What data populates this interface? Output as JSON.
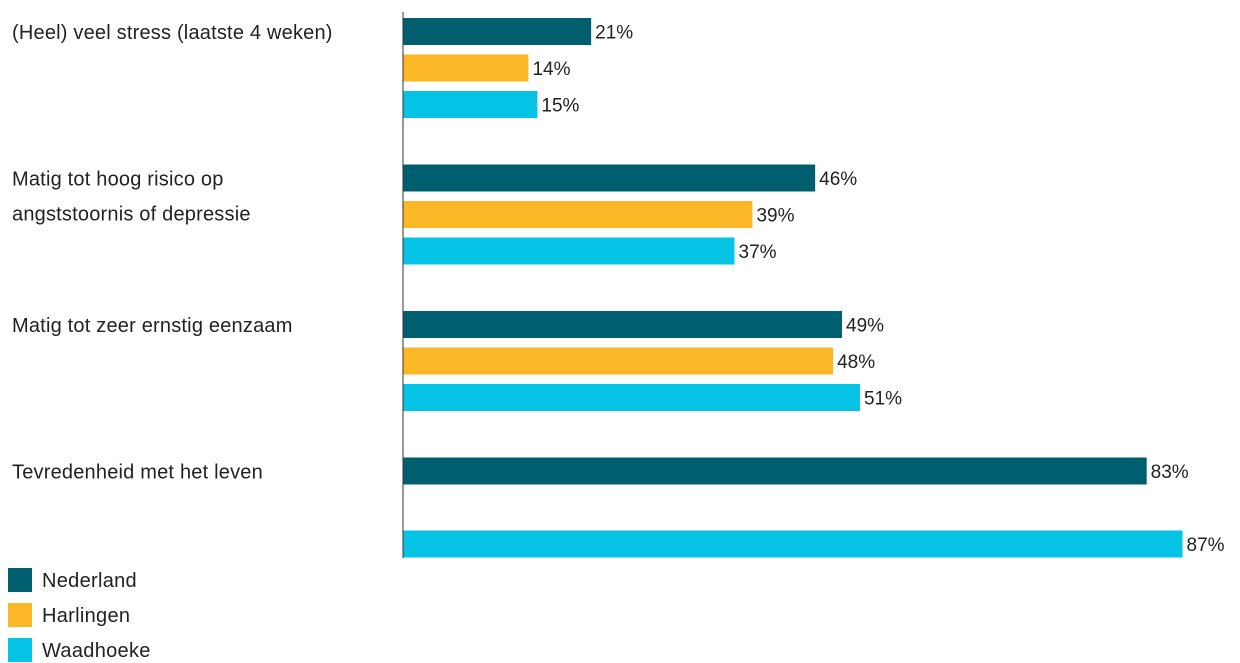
{
  "chart_data": {
    "type": "bar",
    "orientation": "horizontal",
    "categories": [
      [
        "(Heel) veel stress (laatste 4 weken)"
      ],
      [
        "Matig tot hoog risico op",
        "angststoornis of depressie"
      ],
      [
        "Matig tot zeer ernstig eenzaam"
      ],
      [
        "Tevredenheid met het leven"
      ]
    ],
    "series": [
      {
        "name": "Nederland",
        "color": "#005f6e",
        "values": [
          21,
          46,
          49,
          83
        ],
        "labels": [
          "21%",
          "46%",
          "49%",
          "83%"
        ]
      },
      {
        "name": "Harlingen",
        "color": "#fbb726",
        "values": [
          14,
          39,
          48,
          null
        ],
        "labels": [
          "14%",
          "39%",
          "48%",
          ""
        ]
      },
      {
        "name": "Waadhoeke",
        "color": "#05c3e5",
        "values": [
          15,
          37,
          51,
          87
        ],
        "labels": [
          "15%",
          "37%",
          "51%",
          "87%"
        ]
      }
    ],
    "xlim": [
      0,
      100
    ],
    "unit": "%",
    "grid": false,
    "legend_position": "bottom-left"
  }
}
